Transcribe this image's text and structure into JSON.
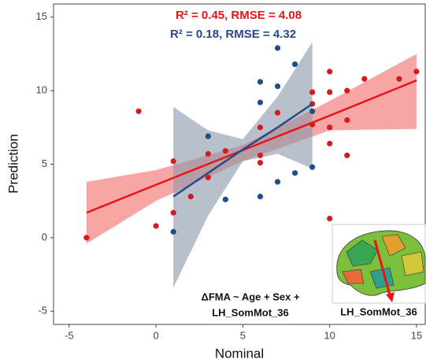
{
  "chart_data": {
    "type": "scatter",
    "xlabel": "Nominal",
    "ylabel": "Prediction",
    "xlim": [
      -5.9,
      15.5
    ],
    "ylim": [
      -5.9,
      15.9
    ],
    "xticks": [
      -5,
      0,
      5,
      10,
      15
    ],
    "yticks": [
      -5,
      0,
      5,
      10,
      15
    ],
    "grid": false,
    "series": [
      {
        "color": "#d7191c",
        "x": [
          -4,
          -1,
          0,
          1,
          1,
          2,
          3,
          3,
          4,
          6,
          6,
          6,
          7,
          9,
          9,
          9,
          10,
          10,
          10,
          10,
          10,
          11,
          11,
          11,
          12,
          14,
          15
        ],
        "values": [
          0,
          8.6,
          0.8,
          5.2,
          1.7,
          2.8,
          5.7,
          4.1,
          5.9,
          7.5,
          5.6,
          5.1,
          8.5,
          9.9,
          9.1,
          7.7,
          11.3,
          9.9,
          7.5,
          6.4,
          1.3,
          10,
          8,
          5.6,
          10.8,
          10.8,
          11.3
        ]
      },
      {
        "color": "#1f4e8c",
        "x": [
          1,
          3,
          4,
          6,
          6,
          6,
          7,
          7,
          7,
          8,
          8,
          9,
          9
        ],
        "values": [
          0.4,
          6.9,
          2.6,
          10.6,
          9.2,
          2.8,
          12.9,
          10.3,
          3.8,
          11.8,
          4.4,
          4.8,
          8.6
        ]
      }
    ],
    "fits": [
      {
        "color": "#e8141a",
        "band_color": "#f26b6b",
        "x": [
          -4,
          0,
          5,
          10,
          15
        ],
        "values": [
          1.7,
          3.6,
          5.95,
          8.3,
          10.7
        ],
        "lower": [
          -0.4,
          2.5,
          5.2,
          7.3,
          7.4
        ],
        "upper": [
          3.8,
          4.6,
          6.3,
          9.3,
          12.5
        ]
      },
      {
        "color": "#2a4a8a",
        "band_color": "#8898a8",
        "x": [
          1,
          3,
          5,
          7,
          9
        ],
        "values": [
          2.8,
          4.4,
          6.0,
          7.5,
          9.1
        ],
        "lower": [
          -3.4,
          1.5,
          5.2,
          5.7,
          4.7
        ],
        "upper": [
          8.9,
          7.3,
          6.7,
          9.6,
          13.3
        ]
      }
    ],
    "annotations": [
      {
        "text": "R² = 0.45, RMSE = 4.08",
        "color": "#e8141a"
      },
      {
        "text": "R² = 0.18, RMSE = 4.32",
        "color": "#2a4a8a"
      }
    ],
    "model_lines": [
      "ΔFMA ~ Age + Sex +",
      "LH_SomMot_36"
    ],
    "inset_label": "LH_SomMot_36"
  }
}
